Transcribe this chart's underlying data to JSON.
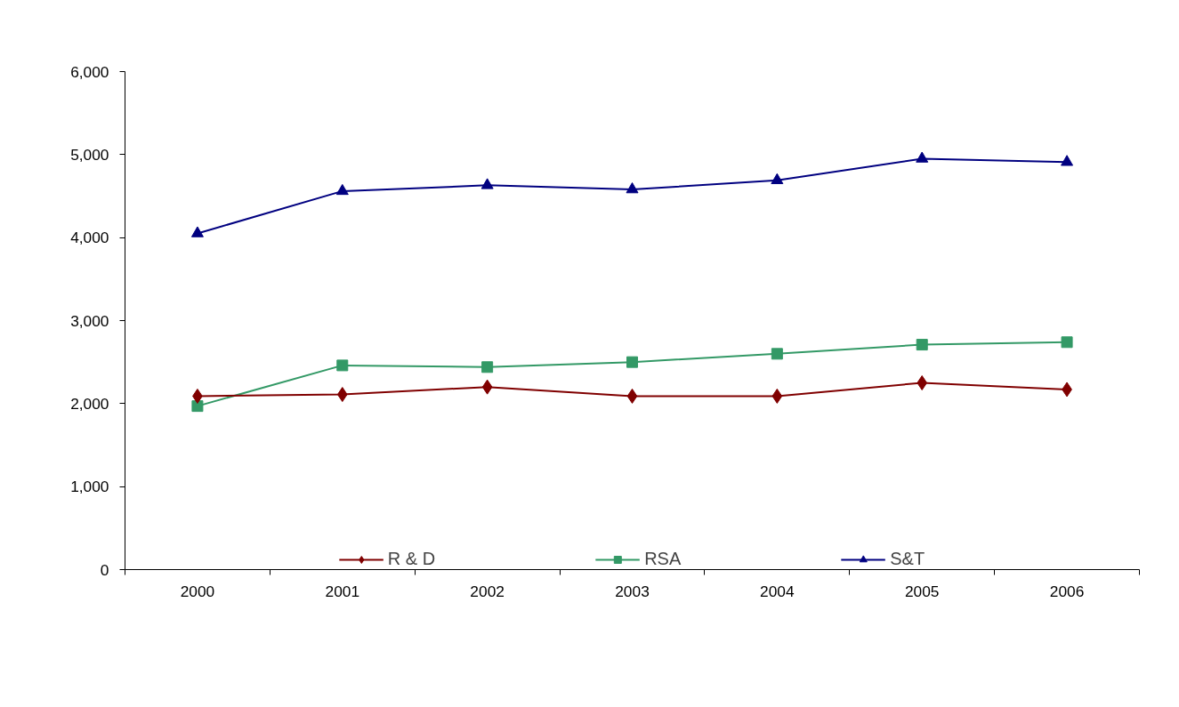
{
  "chart_data": {
    "type": "line",
    "categories": [
      "2000",
      "2001",
      "2002",
      "2003",
      "2004",
      "2005",
      "2006"
    ],
    "series": [
      {
        "name": "R & D",
        "color": "#800000",
        "marker": "diamond",
        "values": [
          2090,
          2110,
          2200,
          2090,
          2090,
          2250,
          2170
        ]
      },
      {
        "name": "RSA",
        "color": "#339966",
        "marker": "square",
        "values": [
          1970,
          2460,
          2440,
          2500,
          2600,
          2710,
          2740
        ]
      },
      {
        "name": "S&T",
        "color": "#000080",
        "marker": "triangle",
        "values": [
          4050,
          4560,
          4630,
          4580,
          4690,
          4950,
          4910
        ]
      }
    ],
    "ylim": [
      0,
      6000
    ],
    "yticks": [
      {
        "value": 0,
        "label": "0"
      },
      {
        "value": 1000,
        "label": "1,000"
      },
      {
        "value": 2000,
        "label": "2,000"
      },
      {
        "value": 3000,
        "label": "3,000"
      },
      {
        "value": 4000,
        "label": "4,000"
      },
      {
        "value": 5000,
        "label": "5,000"
      },
      {
        "value": 6000,
        "label": "6,000"
      }
    ],
    "grid": false,
    "legend": "bottom",
    "line_style": "solid"
  }
}
